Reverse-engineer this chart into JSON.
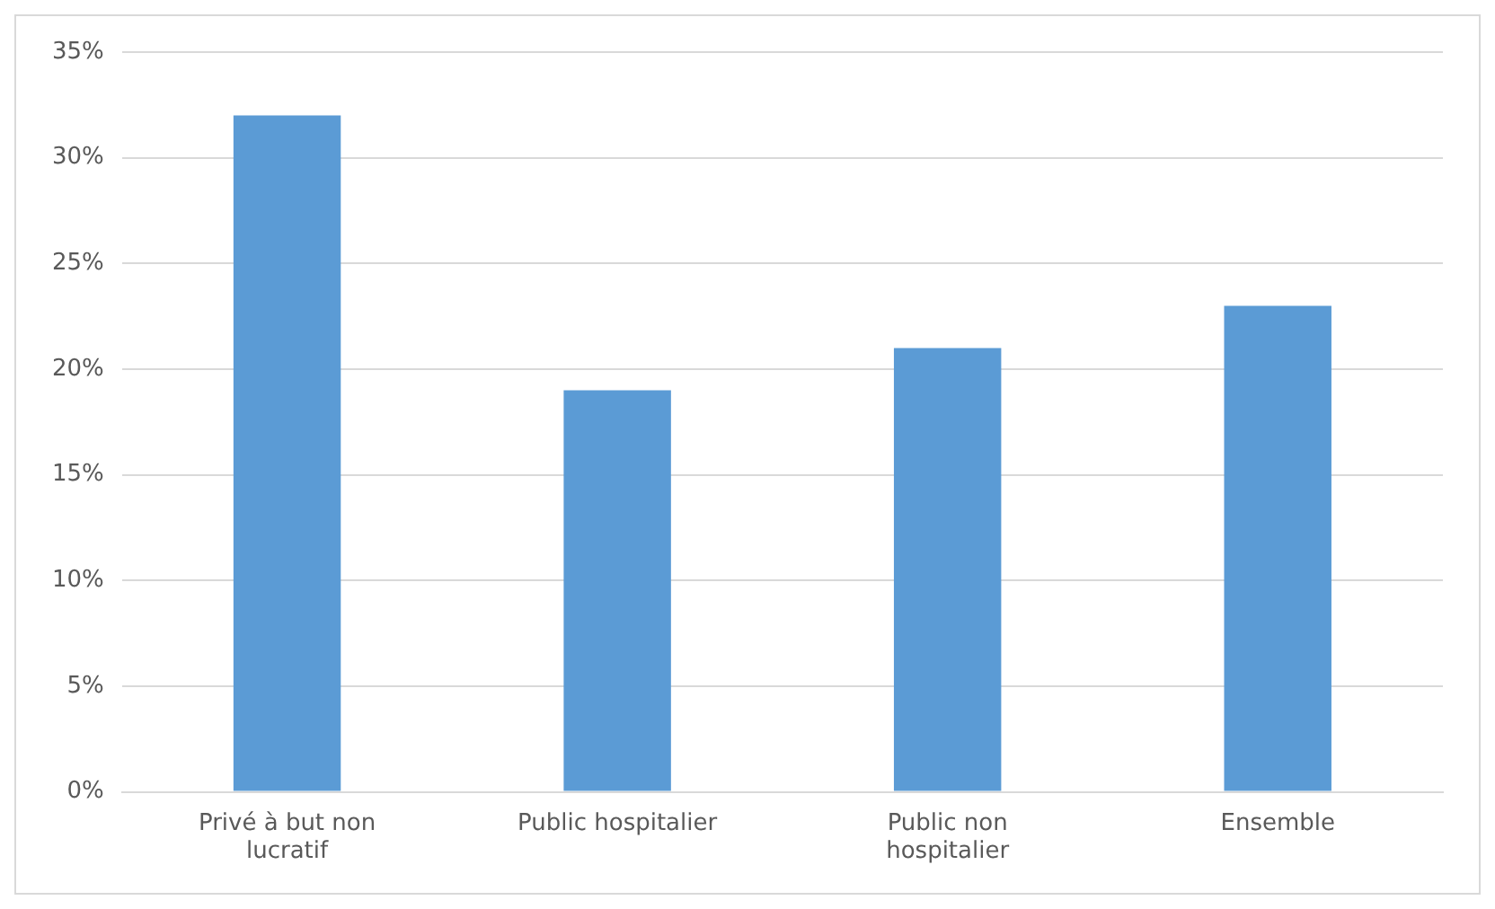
{
  "chart_data": {
    "type": "bar",
    "categories": [
      "Privé à but non lucratif",
      "Public hospitalier",
      "Public non hospitalier",
      "Ensemble"
    ],
    "values": [
      32,
      19,
      21,
      23
    ],
    "color": "#5b9bd5",
    "ylim": [
      0,
      35
    ],
    "yticks": [
      {
        "value": 0,
        "label": "0%"
      },
      {
        "value": 5,
        "label": "5%"
      },
      {
        "value": 10,
        "label": "10%"
      },
      {
        "value": 15,
        "label": "15%"
      },
      {
        "value": 20,
        "label": "20%"
      },
      {
        "value": 25,
        "label": "25%"
      },
      {
        "value": 30,
        "label": "30%"
      },
      {
        "value": 35,
        "label": "35%"
      }
    ],
    "grid": "y",
    "legend": false
  }
}
